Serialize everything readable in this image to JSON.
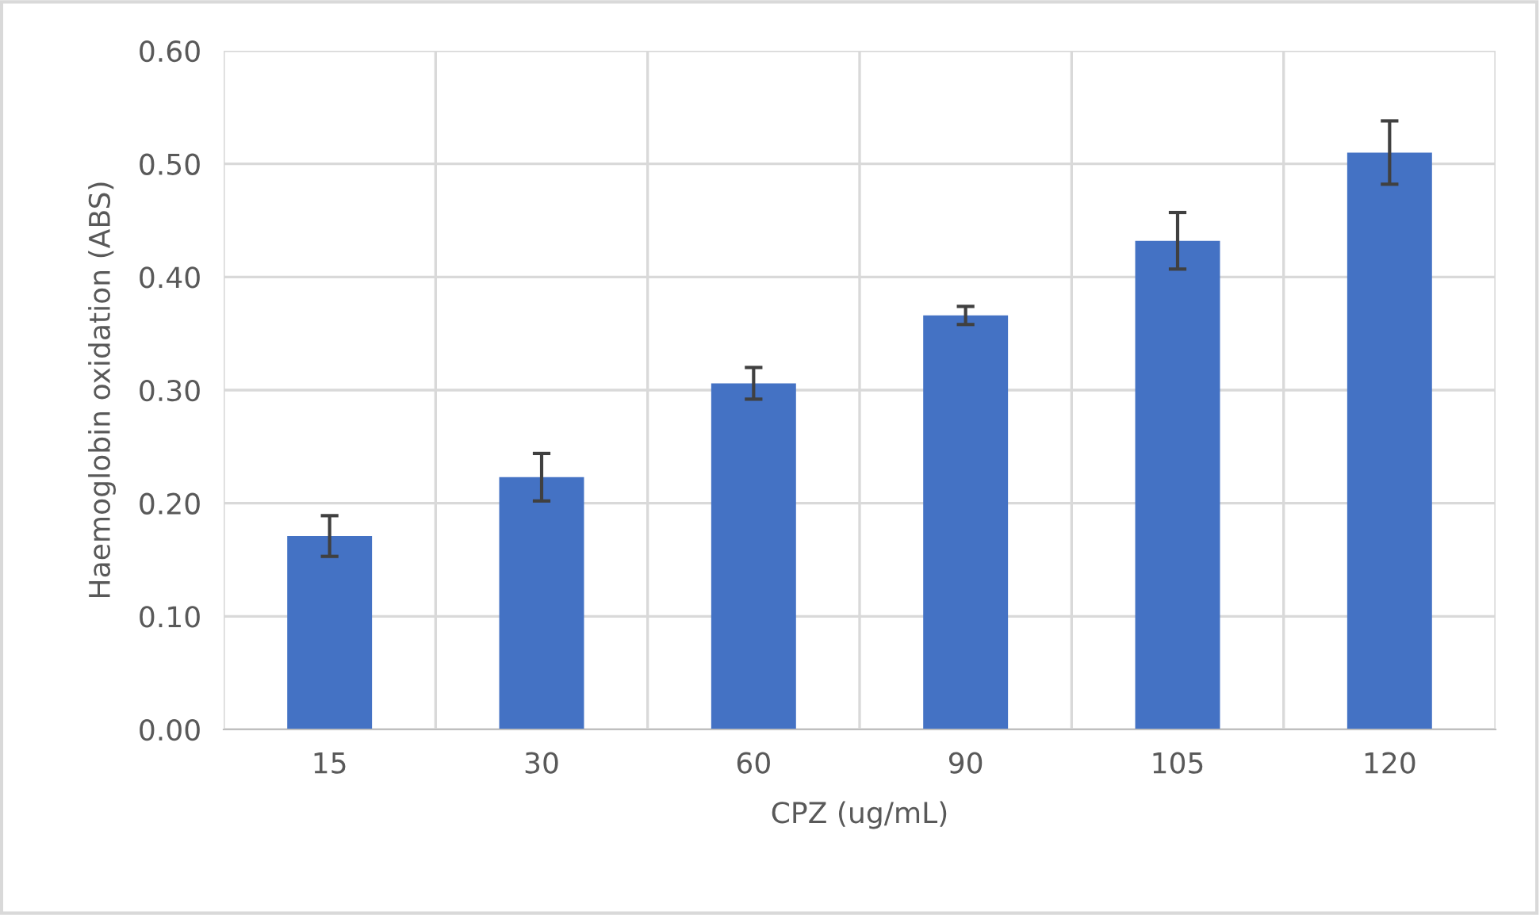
{
  "chart_data": {
    "type": "bar",
    "xlabel": "CPZ (ug/mL)",
    "ylabel": "Haemoglobin oxidation (ABS)",
    "categories": [
      "15",
      "30",
      "60",
      "90",
      "105",
      "120"
    ],
    "values": [
      0.171,
      0.223,
      0.306,
      0.366,
      0.432,
      0.51
    ],
    "errors": [
      0.018,
      0.021,
      0.014,
      0.008,
      0.025,
      0.028
    ],
    "color": "#4472c4",
    "ylim": [
      0,
      0.6
    ],
    "yticks": [
      {
        "value": 0,
        "label": "0.00"
      },
      {
        "value": 0.1,
        "label": "0.10"
      },
      {
        "value": 0.2,
        "label": "0.20"
      },
      {
        "value": 0.3,
        "label": "0.30"
      },
      {
        "value": 0.4,
        "label": "0.40"
      },
      {
        "value": 0.5,
        "label": "0.50"
      },
      {
        "value": 0.6,
        "label": "0.60"
      }
    ],
    "grid": true
  }
}
